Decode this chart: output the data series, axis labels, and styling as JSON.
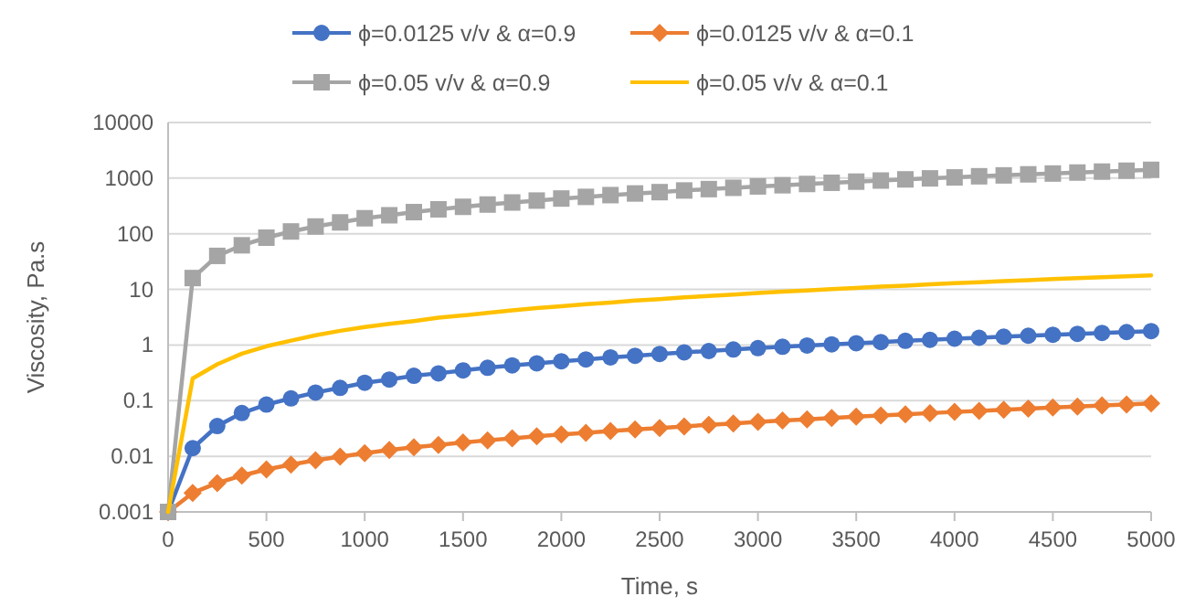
{
  "chart_data": {
    "type": "line",
    "xlabel": "Time, s",
    "ylabel": "Viscosity, Pa.s",
    "log": "y",
    "grid": "y",
    "legend": "top",
    "line_style": "solid",
    "x": [
      0,
      125,
      250,
      375,
      500,
      625,
      750,
      875,
      1000,
      1125,
      1250,
      1375,
      1500,
      1625,
      1750,
      1875,
      2000,
      2125,
      2250,
      2375,
      2500,
      2625,
      2750,
      2875,
      3000,
      3125,
      3250,
      3375,
      3500,
      3625,
      3750,
      3875,
      4000,
      4125,
      4250,
      4375,
      4500,
      4625,
      4750,
      4875,
      5000
    ],
    "xlim": [
      0,
      5000
    ],
    "xticks": [
      0,
      500,
      1000,
      1500,
      2000,
      2500,
      3000,
      3500,
      4000,
      4500,
      5000
    ],
    "ylim": [
      0.001,
      10000
    ],
    "yticks": [
      0.001,
      0.01,
      0.1,
      1,
      10,
      100,
      1000,
      10000
    ],
    "series": [
      {
        "name": "ϕ=0.0125 v/v &  α=0.9",
        "color": "#4472c4",
        "marker": "circle",
        "values": [
          0.001,
          0.014,
          0.035,
          0.06,
          0.085,
          0.11,
          0.14,
          0.17,
          0.21,
          0.24,
          0.28,
          0.31,
          0.35,
          0.39,
          0.43,
          0.47,
          0.51,
          0.55,
          0.6,
          0.64,
          0.69,
          0.74,
          0.78,
          0.83,
          0.88,
          0.93,
          0.98,
          1.03,
          1.08,
          1.13,
          1.19,
          1.24,
          1.3,
          1.35,
          1.41,
          1.47,
          1.53,
          1.59,
          1.65,
          1.71,
          1.78
        ]
      },
      {
        "name": "ϕ=0.0125 v/v &  α=0.1",
        "color": "#ed7d31",
        "marker": "diamond",
        "values": [
          0.001,
          0.0022,
          0.0033,
          0.0045,
          0.0058,
          0.0071,
          0.0085,
          0.0099,
          0.0114,
          0.013,
          0.0145,
          0.016,
          0.0177,
          0.0194,
          0.021,
          0.0228,
          0.0246,
          0.0265,
          0.0284,
          0.0303,
          0.0323,
          0.0345,
          0.0367,
          0.039,
          0.0414,
          0.0438,
          0.0463,
          0.0489,
          0.0515,
          0.0542,
          0.057,
          0.0598,
          0.0627,
          0.0657,
          0.0688,
          0.0719,
          0.0751,
          0.0784,
          0.0818,
          0.0853,
          0.089
        ]
      },
      {
        "name": "ϕ=0.05 v/v &  α=0.9",
        "color": "#a5a5a5",
        "marker": "square",
        "values": [
          0.001,
          16,
          40,
          62,
          85,
          110,
          135,
          160,
          190,
          215,
          245,
          275,
          305,
          335,
          365,
          395,
          430,
          460,
          495,
          530,
          560,
          600,
          635,
          670,
          710,
          745,
          785,
          825,
          865,
          905,
          950,
          990,
          1030,
          1080,
          1120,
          1170,
          1210,
          1260,
          1310,
          1360,
          1410
        ]
      },
      {
        "name": "ϕ=0.05 v/v &  α=0.1",
        "color": "#ffc000",
        "marker": "none",
        "values": [
          0.001,
          0.25,
          0.45,
          0.7,
          0.95,
          1.2,
          1.5,
          1.8,
          2.1,
          2.4,
          2.7,
          3.1,
          3.4,
          3.8,
          4.2,
          4.6,
          5,
          5.4,
          5.8,
          6.3,
          6.7,
          7.2,
          7.6,
          8.1,
          8.6,
          9.1,
          9.6,
          10.1,
          10.6,
          11.2,
          11.7,
          12.3,
          12.9,
          13.5,
          14.1,
          14.7,
          15.3,
          15.9,
          16.6,
          17.2,
          17.9
        ]
      }
    ]
  }
}
